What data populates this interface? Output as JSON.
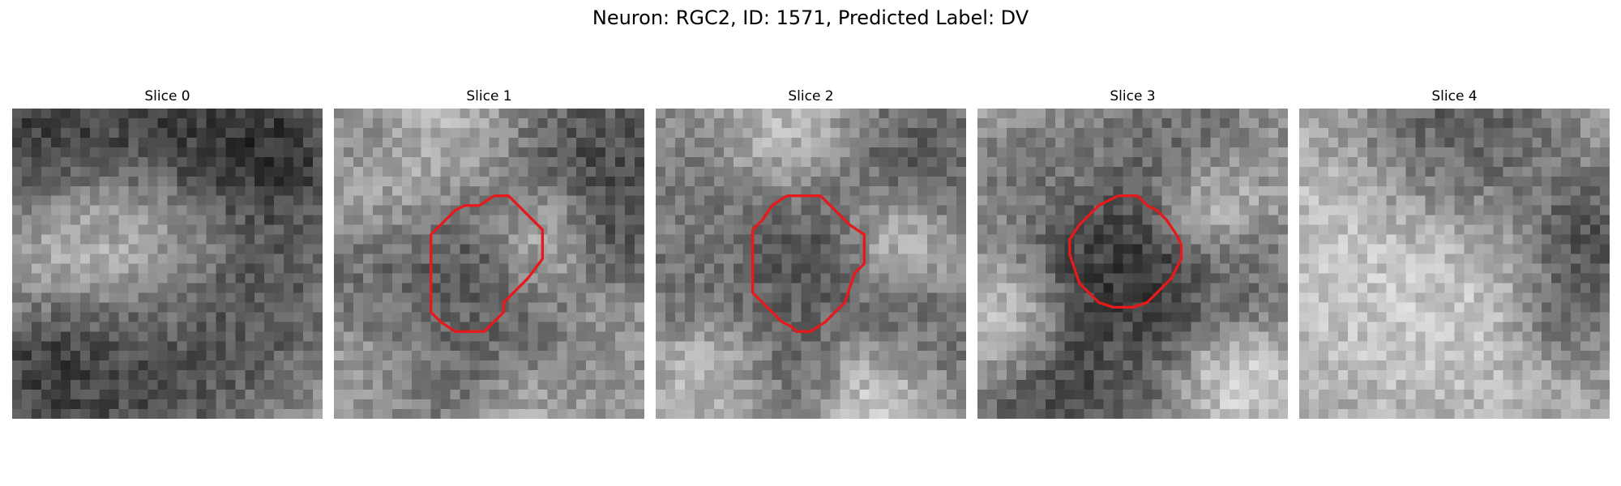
{
  "figure": {
    "title": "Neuron: RGC2, ID: 1571, Predicted Label: DV",
    "contour_color": "#e41a1c",
    "panels": [
      {
        "title": "Slice 0",
        "has_contour": false
      },
      {
        "title": "Slice 1",
        "has_contour": true
      },
      {
        "title": "Slice 2",
        "has_contour": true
      },
      {
        "title": "Slice 3",
        "has_contour": true
      },
      {
        "title": "Slice 4",
        "has_contour": false
      }
    ]
  }
}
